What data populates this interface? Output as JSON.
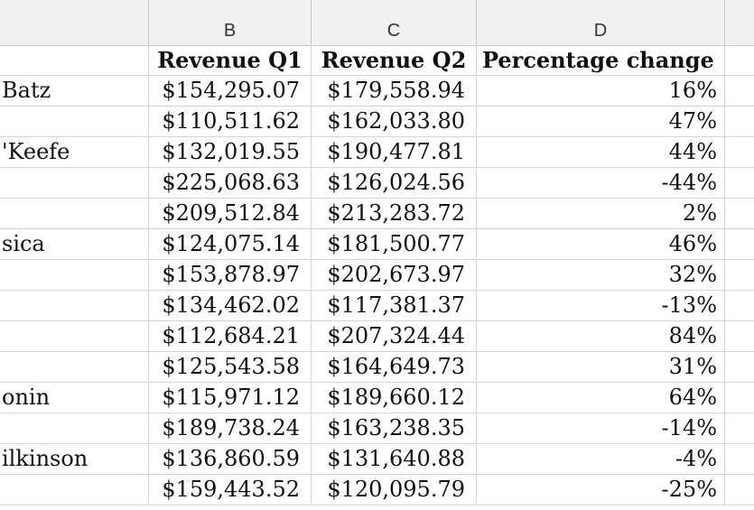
{
  "columns": {
    "b": "B",
    "c": "C",
    "d": "D"
  },
  "header_row": {
    "a": "",
    "b": "Revenue Q1",
    "c": "Revenue Q2",
    "d": "Percentage change"
  },
  "rows": [
    {
      "a": " Batz",
      "b": "$154,295.07",
      "c": "$179,558.94",
      "d": "16%"
    },
    {
      "a": "",
      "b": "$110,511.62",
      "c": "$162,033.80",
      "d": "47%"
    },
    {
      "a": "'Keefe",
      "b": "$132,019.55",
      "c": "$190,477.81",
      "d": "44%"
    },
    {
      "a": "",
      "b": "$225,068.63",
      "c": "$126,024.56",
      "d": "-44%"
    },
    {
      "a": "",
      "b": "$209,512.84",
      "c": "$213,283.72",
      "d": "2%"
    },
    {
      "a": "sica",
      "b": "$124,075.14",
      "c": "$181,500.77",
      "d": "46%"
    },
    {
      "a": "",
      "b": "$153,878.97",
      "c": "$202,673.97",
      "d": "32%"
    },
    {
      "a": "",
      "b": "$134,462.02",
      "c": "$117,381.37",
      "d": "-13%"
    },
    {
      "a": "",
      "b": "$112,684.21",
      "c": "$207,324.44",
      "d": "84%"
    },
    {
      "a": "",
      "b": "$125,543.58",
      "c": "$164,649.73",
      "d": "31%"
    },
    {
      "a": "onin",
      "b": "$115,971.12",
      "c": "$189,660.12",
      "d": "64%"
    },
    {
      "a": "",
      "b": "$189,738.24",
      "c": "$163,238.35",
      "d": "-14%"
    },
    {
      "a": "ilkinson",
      "b": "$136,860.59",
      "c": "$131,640.88",
      "d": "-4%"
    },
    {
      "a": "",
      "b": "$159,443.52",
      "c": "$120,095.79",
      "d": "-25%"
    }
  ]
}
